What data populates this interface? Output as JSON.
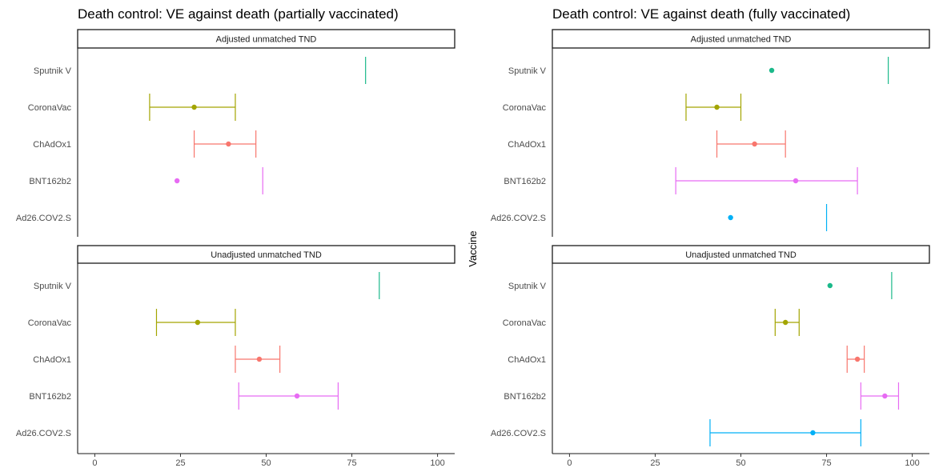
{
  "chart_data": {
    "type": "scatter",
    "ylabel": "Vaccine",
    "xlim": [
      -5,
      105
    ],
    "xticks": [
      0,
      25,
      50,
      75,
      100
    ],
    "categories": [
      "Sputnik V",
      "CoronaVac",
      "ChAdOx1",
      "BNT162b2",
      "Ad26.COV2.S"
    ],
    "colors": {
      "Sputnik V": "#1bb98a",
      "CoronaVac": "#a3a500",
      "ChAdOx1": "#f8766d",
      "BNT162b2": "#e76bf3",
      "Ad26.COV2.S": "#00b0f6"
    },
    "panels": [
      {
        "col": 0,
        "row": 0,
        "title": "Death control: VE against death (partially vaccinated)",
        "strip": "Adjusted unmatched TND",
        "series": [
          {
            "vaccine": "Sputnik V",
            "estimate": null,
            "lower": null,
            "upper": 79
          },
          {
            "vaccine": "CoronaVac",
            "estimate": 29,
            "lower": 16,
            "upper": 41
          },
          {
            "vaccine": "ChAdOx1",
            "estimate": 39,
            "lower": 29,
            "upper": 47
          },
          {
            "vaccine": "BNT162b2",
            "estimate": 24,
            "lower": null,
            "upper": 49
          },
          {
            "vaccine": "Ad26.COV2.S",
            "estimate": null,
            "lower": null,
            "upper": null
          }
        ]
      },
      {
        "col": 0,
        "row": 1,
        "title": "",
        "strip": "Unadjusted unmatched TND",
        "series": [
          {
            "vaccine": "Sputnik V",
            "estimate": null,
            "lower": null,
            "upper": 83
          },
          {
            "vaccine": "CoronaVac",
            "estimate": 30,
            "lower": 18,
            "upper": 41
          },
          {
            "vaccine": "ChAdOx1",
            "estimate": 48,
            "lower": 41,
            "upper": 54
          },
          {
            "vaccine": "BNT162b2",
            "estimate": 59,
            "lower": 42,
            "upper": 71
          },
          {
            "vaccine": "Ad26.COV2.S",
            "estimate": null,
            "lower": null,
            "upper": null
          }
        ]
      },
      {
        "col": 1,
        "row": 0,
        "title": "Death control: VE against death (fully vaccinated)",
        "strip": "Adjusted unmatched TND",
        "series": [
          {
            "vaccine": "Sputnik V",
            "estimate": 59,
            "lower": null,
            "upper": 93
          },
          {
            "vaccine": "CoronaVac",
            "estimate": 43,
            "lower": 34,
            "upper": 50
          },
          {
            "vaccine": "ChAdOx1",
            "estimate": 54,
            "lower": 43,
            "upper": 63
          },
          {
            "vaccine": "BNT162b2",
            "estimate": 66,
            "lower": 31,
            "upper": 84
          },
          {
            "vaccine": "Ad26.COV2.S",
            "estimate": 47,
            "lower": null,
            "upper": 75
          }
        ]
      },
      {
        "col": 1,
        "row": 1,
        "title": "",
        "strip": "Unadjusted unmatched TND",
        "series": [
          {
            "vaccine": "Sputnik V",
            "estimate": 76,
            "lower": null,
            "upper": 94
          },
          {
            "vaccine": "CoronaVac",
            "estimate": 63,
            "lower": 60,
            "upper": 67
          },
          {
            "vaccine": "ChAdOx1",
            "estimate": 84,
            "lower": 81,
            "upper": 86
          },
          {
            "vaccine": "BNT162b2",
            "estimate": 92,
            "lower": 85,
            "upper": 96
          },
          {
            "vaccine": "Ad26.COV2.S",
            "estimate": 71,
            "lower": 41,
            "upper": 85
          }
        ]
      }
    ]
  }
}
